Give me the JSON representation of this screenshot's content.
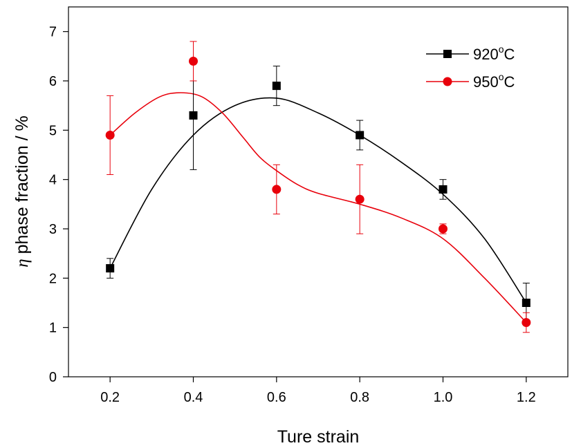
{
  "chart_data": {
    "type": "scatter",
    "xlabel": "Ture strain",
    "ylabel_symbol": "η",
    "ylabel": " phase fraction / %",
    "xlim": [
      0.1,
      1.3
    ],
    "ylim": [
      0,
      7.5
    ],
    "xticks": [
      "0.2",
      "0.4",
      "0.6",
      "0.8",
      "1.0",
      "1.2"
    ],
    "yticks": [
      "0",
      "1",
      "2",
      "3",
      "4",
      "5",
      "6",
      "7"
    ],
    "legend_position": "top-right",
    "series": [
      {
        "name": "920",
        "unit": "C",
        "degree": "o",
        "marker": "square",
        "color": "#000000",
        "x": [
          0.2,
          0.4,
          0.6,
          0.8,
          1.0,
          1.2
        ],
        "y": [
          2.2,
          5.3,
          5.9,
          4.9,
          3.8,
          1.5
        ],
        "err_low": [
          2.0,
          4.2,
          5.5,
          4.6,
          3.6,
          1.1
        ],
        "err_high": [
          2.4,
          6.0,
          6.3,
          5.2,
          4.0,
          1.9
        ],
        "fit_curve": [
          [
            0.2,
            2.2
          ],
          [
            0.3,
            3.8
          ],
          [
            0.4,
            4.9
          ],
          [
            0.5,
            5.5
          ],
          [
            0.6,
            5.65
          ],
          [
            0.7,
            5.35
          ],
          [
            0.8,
            4.9
          ],
          [
            0.9,
            4.35
          ],
          [
            1.0,
            3.7
          ],
          [
            1.1,
            2.8
          ],
          [
            1.2,
            1.5
          ]
        ]
      },
      {
        "name": "950",
        "unit": "C",
        "degree": "o",
        "marker": "circle",
        "color": "#e8000b",
        "x": [
          0.2,
          0.4,
          0.6,
          0.8,
          1.0,
          1.2
        ],
        "y": [
          4.9,
          6.4,
          3.8,
          3.6,
          3.0,
          1.1
        ],
        "err_low": [
          4.1,
          6.0,
          3.3,
          2.9,
          2.9,
          0.9
        ],
        "err_high": [
          5.7,
          6.8,
          4.3,
          4.3,
          3.1,
          1.3
        ],
        "fit_curve": [
          [
            0.2,
            4.9
          ],
          [
            0.26,
            5.35
          ],
          [
            0.32,
            5.68
          ],
          [
            0.37,
            5.76
          ],
          [
            0.42,
            5.68
          ],
          [
            0.47,
            5.35
          ],
          [
            0.52,
            4.85
          ],
          [
            0.56,
            4.45
          ],
          [
            0.6,
            4.18
          ],
          [
            0.65,
            3.9
          ],
          [
            0.7,
            3.72
          ],
          [
            0.8,
            3.5
          ],
          [
            0.9,
            3.22
          ],
          [
            1.0,
            2.8
          ],
          [
            1.1,
            2.0
          ],
          [
            1.2,
            1.1
          ]
        ]
      }
    ]
  }
}
